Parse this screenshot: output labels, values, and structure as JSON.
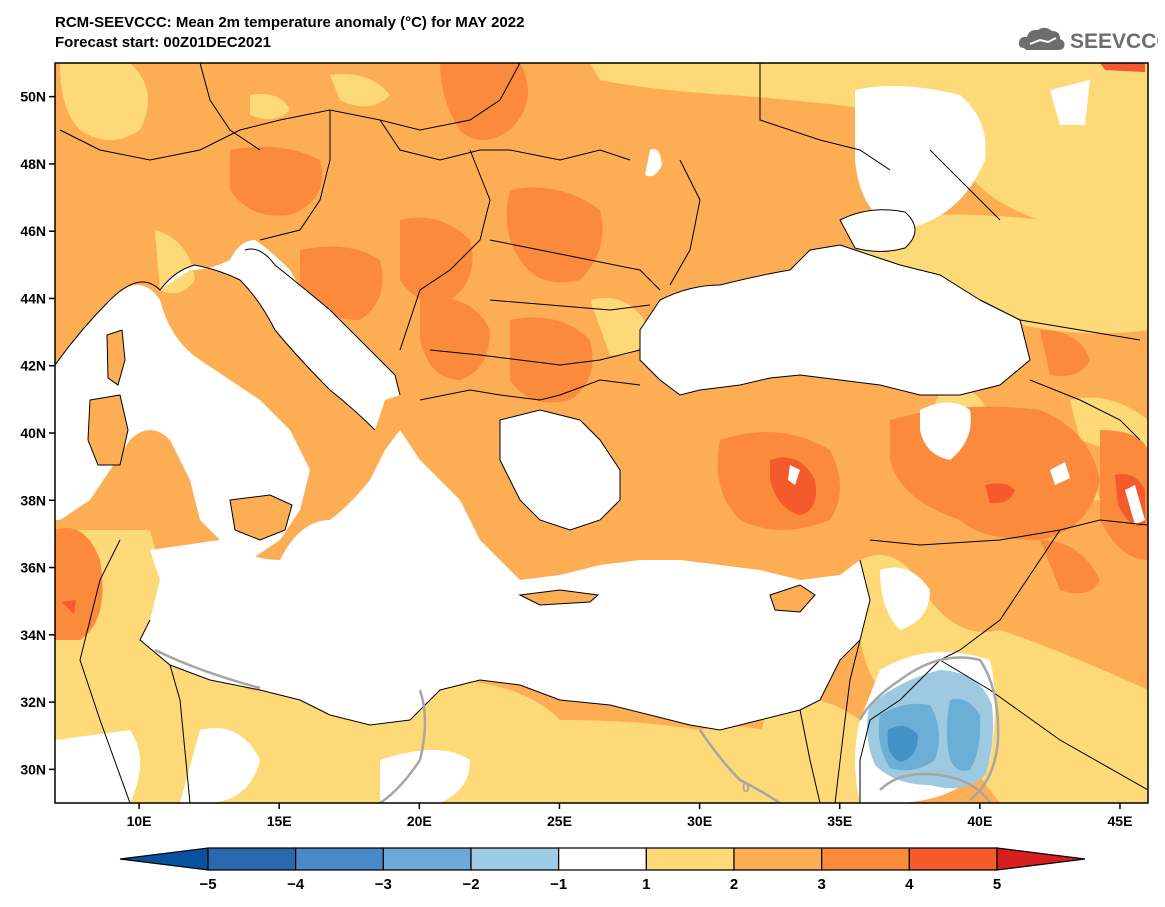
{
  "header": {
    "title_line1": "RCM-SEEVCCC: Mean 2m temperature anomaly (°C) for MAY 2022",
    "title_line2": "Forecast start: 00Z01DEC2021"
  },
  "logo": {
    "icon": "cloud-icon",
    "text": "SEEVCCC"
  },
  "map": {
    "lon_range": [
      7,
      46
    ],
    "lat_range": [
      29,
      51
    ],
    "lat_ticks": [
      {
        "value": 50,
        "label": "50N"
      },
      {
        "value": 48,
        "label": "48N"
      },
      {
        "value": 46,
        "label": "46N"
      },
      {
        "value": 44,
        "label": "44N"
      },
      {
        "value": 42,
        "label": "42N"
      },
      {
        "value": 40,
        "label": "40N"
      },
      {
        "value": 38,
        "label": "38N"
      },
      {
        "value": 36,
        "label": "36N"
      },
      {
        "value": 34,
        "label": "34N"
      },
      {
        "value": 32,
        "label": "32N"
      },
      {
        "value": 30,
        "label": "30N"
      }
    ],
    "lon_ticks": [
      {
        "value": 10,
        "label": "10E"
      },
      {
        "value": 15,
        "label": "15E"
      },
      {
        "value": 20,
        "label": "20E"
      },
      {
        "value": 25,
        "label": "25E"
      },
      {
        "value": 30,
        "label": "30E"
      },
      {
        "value": 35,
        "label": "35E"
      },
      {
        "value": 40,
        "label": "40E"
      },
      {
        "value": 45,
        "label": "45E"
      }
    ],
    "contour_label": "0",
    "colors": {
      "sea": "#ffffff",
      "level_1_2": "#fed978",
      "level_2_3": "#fdae55",
      "level_3_4": "#fb8a3c",
      "level_4_5": "#f45a2c",
      "level_m1_m2": "#9ecae1",
      "level_m2_m3": "#6baed6",
      "level_m3_m4": "#4292c6",
      "zero_contour": "#a6a6a6"
    }
  },
  "colorbar": {
    "labels": [
      "−5",
      "−4",
      "−3",
      "−2",
      "−1",
      "1",
      "2",
      "3",
      "4",
      "5"
    ],
    "colors": [
      "#08519c",
      "#2a68ad",
      "#4a89c7",
      "#6ea8d8",
      "#9dcae5",
      "#ffffff",
      "#fed978",
      "#fdae55",
      "#fb8a3c",
      "#f45a2c",
      "#d81e1e"
    ]
  }
}
